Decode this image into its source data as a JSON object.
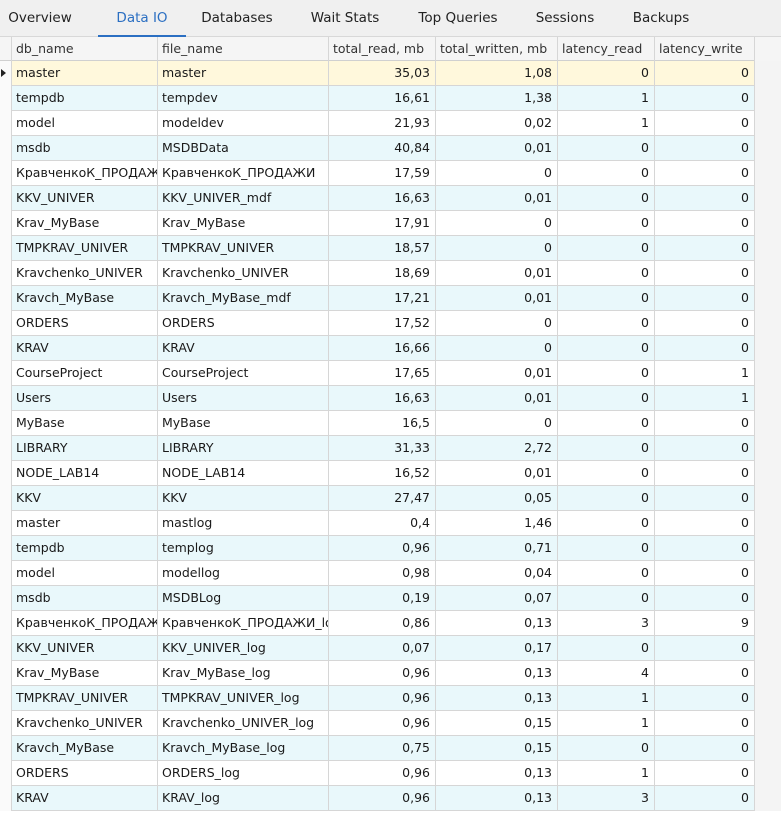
{
  "tabs": [
    {
      "label": "Overview"
    },
    {
      "label": "Data IO"
    },
    {
      "label": "Databases"
    },
    {
      "label": "Wait Stats"
    },
    {
      "label": "Top Queries"
    },
    {
      "label": "Sessions"
    },
    {
      "label": "Backups"
    }
  ],
  "active_tab": "Data IO",
  "columns": [
    "db_name",
    "file_name",
    "total_read, mb",
    "total_written, mb",
    "latency_read",
    "latency_write"
  ],
  "rows": [
    [
      "master",
      "master",
      "35,03",
      "1,08",
      "0",
      "0"
    ],
    [
      "tempdb",
      "tempdev",
      "16,61",
      "1,38",
      "1",
      "0"
    ],
    [
      "model",
      "modeldev",
      "21,93",
      "0,02",
      "1",
      "0"
    ],
    [
      "msdb",
      "MSDBData",
      "40,84",
      "0,01",
      "0",
      "0"
    ],
    [
      "КравченкоК_ПРОДАЖИ",
      "КравченкоК_ПРОДАЖИ",
      "17,59",
      "0",
      "0",
      "0"
    ],
    [
      "KKV_UNIVER",
      "KKV_UNIVER_mdf",
      "16,63",
      "0,01",
      "0",
      "0"
    ],
    [
      "Krav_MyBase",
      "Krav_MyBase",
      "17,91",
      "0",
      "0",
      "0"
    ],
    [
      "TMPKRAV_UNIVER",
      "TMPKRAV_UNIVER",
      "18,57",
      "0",
      "0",
      "0"
    ],
    [
      "Kravchenko_UNIVER",
      "Kravchenko_UNIVER",
      "18,69",
      "0,01",
      "0",
      "0"
    ],
    [
      "Kravch_MyBase",
      "Kravch_MyBase_mdf",
      "17,21",
      "0,01",
      "0",
      "0"
    ],
    [
      "ORDERS",
      "ORDERS",
      "17,52",
      "0",
      "0",
      "0"
    ],
    [
      "KRAV",
      "KRAV",
      "16,66",
      "0",
      "0",
      "0"
    ],
    [
      "CourseProject",
      "CourseProject",
      "17,65",
      "0,01",
      "0",
      "1"
    ],
    [
      "Users",
      "Users",
      "16,63",
      "0,01",
      "0",
      "1"
    ],
    [
      "MyBase",
      "MyBase",
      "16,5",
      "0",
      "0",
      "0"
    ],
    [
      "LIBRARY",
      "LIBRARY",
      "31,33",
      "2,72",
      "0",
      "0"
    ],
    [
      "NODE_LAB14",
      "NODE_LAB14",
      "16,52",
      "0,01",
      "0",
      "0"
    ],
    [
      "KKV",
      "KKV",
      "27,47",
      "0,05",
      "0",
      "0"
    ],
    [
      "master",
      "mastlog",
      "0,4",
      "1,46",
      "0",
      "0"
    ],
    [
      "tempdb",
      "templog",
      "0,96",
      "0,71",
      "0",
      "0"
    ],
    [
      "model",
      "modellog",
      "0,98",
      "0,04",
      "0",
      "0"
    ],
    [
      "msdb",
      "MSDBLog",
      "0,19",
      "0,07",
      "0",
      "0"
    ],
    [
      "КравченкоК_ПРОДАЖИ",
      "КравченкоК_ПРОДАЖИ_log",
      "0,86",
      "0,13",
      "3",
      "9"
    ],
    [
      "KKV_UNIVER",
      "KKV_UNIVER_log",
      "0,07",
      "0,17",
      "0",
      "0"
    ],
    [
      "Krav_MyBase",
      "Krav_MyBase_log",
      "0,96",
      "0,13",
      "4",
      "0"
    ],
    [
      "TMPKRAV_UNIVER",
      "TMPKRAV_UNIVER_log",
      "0,96",
      "0,13",
      "1",
      "0"
    ],
    [
      "Kravchenko_UNIVER",
      "Kravchenko_UNIVER_log",
      "0,96",
      "0,15",
      "1",
      "0"
    ],
    [
      "Kravch_MyBase",
      "Kravch_MyBase_log",
      "0,75",
      "0,15",
      "0",
      "0"
    ],
    [
      "ORDERS",
      "ORDERS_log",
      "0,96",
      "0,13",
      "1",
      "0"
    ],
    [
      "KRAV",
      "KRAV_log",
      "0,96",
      "0,13",
      "3",
      "0"
    ]
  ],
  "selected_row": 0,
  "colors": {
    "accent": "#2b6fc2",
    "row_alt": "#e9f8fb",
    "row_selected": "#fff8dc"
  }
}
